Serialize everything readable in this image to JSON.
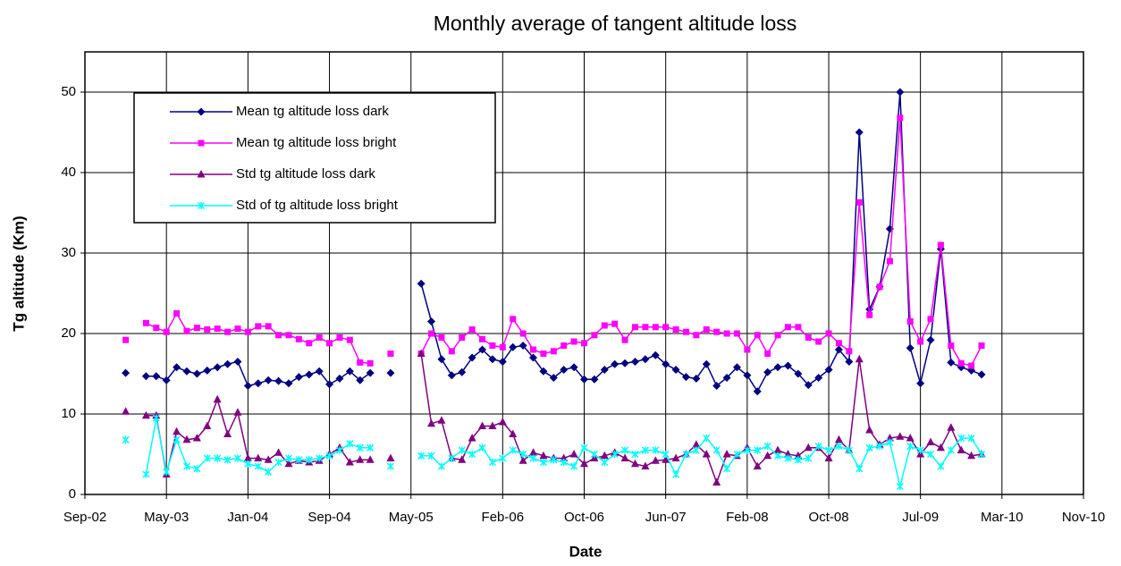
{
  "chart_data": {
    "type": "line",
    "title": "Monthly average of tangent altitude loss",
    "x_label": "Date",
    "y_label": "Tg altitude (Km)",
    "x": [
      "2003-01",
      "2003-02",
      "2003-03",
      "2003-04",
      "2003-05",
      "2003-06",
      "2003-07",
      "2003-08",
      "2003-09",
      "2003-10",
      "2003-11",
      "2003-12",
      "2004-01",
      "2004-02",
      "2004-03",
      "2004-04",
      "2004-05",
      "2004-06",
      "2004-07",
      "2004-08",
      "2004-09",
      "2004-10",
      "2004-11",
      "2004-12",
      "2005-01",
      "2005-02",
      "2005-03",
      "2005-04",
      "2005-05",
      "2005-06",
      "2005-07",
      "2005-08",
      "2005-09",
      "2005-10",
      "2005-11",
      "2005-12",
      "2006-01",
      "2006-02",
      "2006-03",
      "2006-04",
      "2006-05",
      "2006-06",
      "2006-07",
      "2006-08",
      "2006-09",
      "2006-10",
      "2006-11",
      "2006-12",
      "2007-01",
      "2007-02",
      "2007-03",
      "2007-04",
      "2007-05",
      "2007-06",
      "2007-07",
      "2007-08",
      "2007-09",
      "2007-10",
      "2007-11",
      "2007-12",
      "2008-01",
      "2008-02",
      "2008-03",
      "2008-04",
      "2008-05",
      "2008-06",
      "2008-07",
      "2008-08",
      "2008-09",
      "2008-10",
      "2008-11",
      "2008-12",
      "2009-01",
      "2009-02",
      "2009-03",
      "2009-04",
      "2009-05",
      "2009-06",
      "2009-07",
      "2009-08",
      "2009-09",
      "2009-10",
      "2009-11",
      "2009-12",
      "2010-01"
    ],
    "series": [
      {
        "name": "Mean tg altitude loss dark",
        "color": "#000080",
        "marker": "diamond",
        "values": [
          15.1,
          null,
          14.7,
          14.7,
          14.2,
          15.8,
          15.3,
          15.0,
          15.4,
          15.8,
          16.2,
          16.5,
          13.5,
          13.8,
          14.2,
          14.1,
          13.8,
          14.6,
          14.9,
          15.3,
          13.7,
          14.4,
          15.3,
          14.2,
          15.1,
          null,
          15.1,
          null,
          null,
          26.2,
          21.5,
          16.8,
          14.8,
          15.2,
          17.0,
          18.0,
          16.8,
          16.5,
          18.3,
          18.5,
          17.0,
          15.3,
          14.5,
          15.5,
          15.8,
          14.3,
          14.3,
          15.5,
          16.2,
          16.3,
          16.5,
          16.8,
          17.3,
          16.2,
          15.5,
          14.6,
          14.4,
          16.2,
          13.5,
          14.5,
          15.8,
          14.8,
          12.8,
          15.2,
          15.8,
          16.0,
          15.0,
          13.6,
          14.5,
          15.5,
          18.0,
          16.5,
          45.0,
          23.0,
          25.8,
          33.0,
          50.0,
          18.2,
          13.8,
          19.2,
          30.5,
          16.4,
          15.8,
          15.4,
          14.9
        ]
      },
      {
        "name": "Mean tg altitude loss bright",
        "color": "#ff00ff",
        "marker": "square",
        "values": [
          19.2,
          null,
          21.3,
          20.7,
          20.2,
          22.5,
          20.3,
          20.7,
          20.5,
          20.6,
          20.2,
          20.6,
          20.2,
          20.9,
          20.9,
          19.8,
          19.8,
          19.3,
          18.8,
          19.5,
          18.8,
          19.5,
          19.2,
          16.4,
          16.3,
          null,
          17.5,
          null,
          null,
          17.5,
          20.0,
          19.5,
          17.8,
          19.5,
          20.5,
          19.3,
          18.5,
          18.3,
          21.8,
          20.0,
          18.0,
          17.5,
          17.8,
          18.5,
          19.0,
          18.8,
          19.8,
          21.0,
          21.2,
          19.2,
          20.8,
          20.8,
          20.8,
          20.8,
          20.5,
          20.2,
          19.8,
          20.5,
          20.2,
          20.0,
          20.0,
          18.0,
          19.8,
          17.5,
          19.8,
          20.8,
          20.8,
          19.5,
          19.0,
          20.0,
          18.8,
          17.8,
          36.3,
          22.3,
          25.8,
          29.0,
          46.8,
          21.5,
          19.0,
          21.8,
          31.0,
          18.5,
          16.3,
          16.0,
          18.5
        ]
      },
      {
        "name": "Std tg altitude loss dark",
        "color": "#800080",
        "marker": "triangle",
        "values": [
          10.3,
          null,
          9.8,
          9.8,
          2.5,
          7.8,
          6.8,
          7.0,
          8.5,
          11.8,
          7.5,
          10.2,
          4.5,
          4.5,
          4.3,
          5.2,
          3.8,
          4.2,
          4.0,
          4.2,
          5.0,
          5.8,
          4.0,
          4.3,
          4.3,
          null,
          4.5,
          null,
          null,
          17.5,
          8.8,
          9.2,
          4.5,
          4.3,
          7.0,
          8.5,
          8.5,
          9.0,
          7.5,
          4.2,
          5.2,
          4.8,
          4.5,
          4.5,
          5.0,
          3.8,
          4.5,
          4.8,
          5.2,
          4.5,
          3.8,
          3.5,
          4.2,
          4.3,
          4.5,
          5.0,
          6.2,
          5.0,
          1.5,
          5.0,
          4.8,
          5.8,
          3.5,
          4.8,
          5.5,
          5.0,
          4.8,
          5.8,
          5.8,
          4.5,
          6.8,
          5.5,
          16.8,
          8.0,
          6.2,
          7.0,
          7.2,
          7.0,
          5.0,
          6.5,
          5.8,
          8.3,
          5.5,
          4.8,
          5.0
        ]
      },
      {
        "name": "Std of tg altitude loss bright",
        "color": "#00ffff",
        "marker": "star",
        "values": [
          6.8,
          null,
          2.5,
          9.5,
          2.8,
          6.8,
          3.5,
          3.2,
          4.5,
          4.5,
          4.3,
          4.5,
          3.8,
          3.5,
          2.8,
          4.0,
          4.5,
          4.3,
          4.3,
          4.5,
          4.8,
          5.5,
          6.3,
          5.8,
          5.8,
          null,
          3.5,
          null,
          null,
          4.8,
          4.8,
          3.5,
          4.5,
          5.5,
          5.0,
          5.8,
          4.0,
          4.5,
          5.5,
          5.0,
          4.5,
          4.0,
          4.3,
          4.0,
          3.5,
          5.8,
          5.0,
          4.0,
          5.0,
          5.5,
          5.0,
          5.5,
          5.5,
          5.0,
          2.5,
          5.0,
          5.5,
          7.0,
          5.5,
          3.2,
          5.0,
          5.5,
          5.5,
          6.0,
          4.8,
          4.5,
          4.3,
          4.5,
          6.0,
          5.5,
          6.0,
          5.5,
          3.2,
          5.8,
          6.0,
          6.5,
          1.0,
          6.0,
          5.5,
          5.0,
          3.5,
          5.5,
          7.0,
          7.0,
          5.0
        ]
      }
    ],
    "xlim": [
      "2002-09",
      "2010-11"
    ],
    "xticks": [
      {
        "value": "2002-09",
        "label": "Sep-02"
      },
      {
        "value": "2003-05",
        "label": "May-03"
      },
      {
        "value": "2004-01",
        "label": "Jan-04"
      },
      {
        "value": "2004-09",
        "label": "Sep-04"
      },
      {
        "value": "2005-05",
        "label": "May-05"
      },
      {
        "value": "2006-02",
        "label": "Feb-06"
      },
      {
        "value": "2006-10",
        "label": "Oct-06"
      },
      {
        "value": "2007-06",
        "label": "Jun-07"
      },
      {
        "value": "2008-02",
        "label": "Feb-08"
      },
      {
        "value": "2008-10",
        "label": "Oct-08"
      },
      {
        "value": "2009-07",
        "label": "Jul-09"
      },
      {
        "value": "2010-03",
        "label": "Mar-10"
      },
      {
        "value": "2010-11",
        "label": "Nov-10"
      }
    ],
    "ylim": [
      0,
      55
    ],
    "yticks": [
      0,
      10,
      20,
      30,
      40,
      50
    ],
    "grid": true,
    "legend": "upper left"
  }
}
